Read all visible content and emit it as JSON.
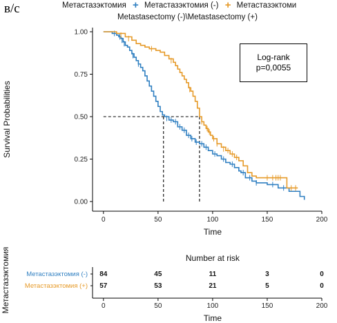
{
  "panel_label": "в/с",
  "legend": {
    "title": "Метастазэктомия",
    "items": [
      {
        "label": "Метастазэктомия (-)",
        "color": "#2f7fc1"
      },
      {
        "label": "Метастазэктоми",
        "color": "#e69a28"
      }
    ],
    "subtitle": "Metastasectomy (-)\\Metastasectomy (+)"
  },
  "annotation": {
    "line1": "Log-rank",
    "line2": "p=0,0055"
  },
  "chart_data": {
    "type": "line",
    "title": "",
    "xlabel": "Time",
    "ylabel": "Survival Probabilities",
    "xlim": [
      -10,
      200
    ],
    "ylim": [
      0,
      1
    ],
    "x_ticks": [
      0,
      50,
      100,
      150,
      200
    ],
    "y_ticks": [
      "0.00",
      "0.25",
      "0.50",
      "0.75",
      "1.00"
    ],
    "y_tick_values": [
      0,
      0.25,
      0.5,
      0.75,
      1.0
    ],
    "grid": false,
    "legend_position": "top",
    "median_lines": [
      {
        "series": "Метастазэктомия (-)",
        "x": 55,
        "y": 0.5
      },
      {
        "series": "Метастазэктомия (+)",
        "x": 88,
        "y": 0.5
      }
    ],
    "series": [
      {
        "name": "Метастазэктомия (-)",
        "color": "#2f7fc1",
        "steps": [
          [
            0,
            1.0
          ],
          [
            8,
            0.99
          ],
          [
            12,
            0.98
          ],
          [
            14,
            0.97
          ],
          [
            16,
            0.96
          ],
          [
            18,
            0.94
          ],
          [
            20,
            0.92
          ],
          [
            22,
            0.91
          ],
          [
            24,
            0.89
          ],
          [
            26,
            0.87
          ],
          [
            28,
            0.85
          ],
          [
            30,
            0.83
          ],
          [
            32,
            0.81
          ],
          [
            34,
            0.79
          ],
          [
            36,
            0.77
          ],
          [
            38,
            0.74
          ],
          [
            40,
            0.71
          ],
          [
            42,
            0.68
          ],
          [
            44,
            0.65
          ],
          [
            46,
            0.62
          ],
          [
            48,
            0.59
          ],
          [
            50,
            0.56
          ],
          [
            52,
            0.53
          ],
          [
            54,
            0.51
          ],
          [
            56,
            0.5
          ],
          [
            60,
            0.48
          ],
          [
            64,
            0.47
          ],
          [
            68,
            0.44
          ],
          [
            72,
            0.42
          ],
          [
            76,
            0.39
          ],
          [
            80,
            0.37
          ],
          [
            84,
            0.35
          ],
          [
            88,
            0.34
          ],
          [
            92,
            0.32
          ],
          [
            96,
            0.3
          ],
          [
            100,
            0.28
          ],
          [
            104,
            0.27
          ],
          [
            108,
            0.25
          ],
          [
            112,
            0.23
          ],
          [
            116,
            0.22
          ],
          [
            120,
            0.2
          ],
          [
            124,
            0.18
          ],
          [
            126,
            0.17
          ],
          [
            130,
            0.14
          ],
          [
            136,
            0.12
          ],
          [
            140,
            0.11
          ],
          [
            150,
            0.1
          ],
          [
            160,
            0.08
          ],
          [
            170,
            0.06
          ],
          [
            180,
            0.03
          ],
          [
            184,
            0.01
          ]
        ],
        "censors": [
          [
            10,
            0.99
          ],
          [
            15,
            0.97
          ],
          [
            17,
            0.95
          ],
          [
            19,
            0.93
          ],
          [
            27,
            0.86
          ],
          [
            32,
            0.81
          ],
          [
            58,
            0.49
          ],
          [
            62,
            0.48
          ],
          [
            66,
            0.47
          ],
          [
            70,
            0.44
          ],
          [
            74,
            0.42
          ],
          [
            78,
            0.39
          ],
          [
            81,
            0.37
          ],
          [
            85,
            0.35
          ],
          [
            90,
            0.34
          ],
          [
            94,
            0.32
          ],
          [
            102,
            0.28
          ],
          [
            110,
            0.25
          ],
          [
            118,
            0.22
          ],
          [
            128,
            0.17
          ],
          [
            134,
            0.14
          ],
          [
            140,
            0.11
          ],
          [
            155,
            0.1
          ],
          [
            165,
            0.08
          ]
        ]
      },
      {
        "name": "Метастазэктомия (+)",
        "color": "#e69a28",
        "steps": [
          [
            0,
            1.0
          ],
          [
            12,
            0.99
          ],
          [
            20,
            0.97
          ],
          [
            26,
            0.95
          ],
          [
            30,
            0.93
          ],
          [
            34,
            0.92
          ],
          [
            38,
            0.91
          ],
          [
            42,
            0.9
          ],
          [
            46,
            0.9
          ],
          [
            48,
            0.89
          ],
          [
            52,
            0.88
          ],
          [
            56,
            0.86
          ],
          [
            60,
            0.84
          ],
          [
            64,
            0.82
          ],
          [
            66,
            0.8
          ],
          [
            68,
            0.78
          ],
          [
            70,
            0.76
          ],
          [
            72,
            0.74
          ],
          [
            74,
            0.72
          ],
          [
            76,
            0.7
          ],
          [
            78,
            0.67
          ],
          [
            80,
            0.65
          ],
          [
            82,
            0.62
          ],
          [
            84,
            0.59
          ],
          [
            86,
            0.55
          ],
          [
            88,
            0.5
          ],
          [
            90,
            0.47
          ],
          [
            92,
            0.45
          ],
          [
            94,
            0.43
          ],
          [
            96,
            0.41
          ],
          [
            98,
            0.39
          ],
          [
            100,
            0.37
          ],
          [
            104,
            0.34
          ],
          [
            108,
            0.32
          ],
          [
            112,
            0.3
          ],
          [
            116,
            0.28
          ],
          [
            120,
            0.26
          ],
          [
            124,
            0.24
          ],
          [
            128,
            0.21
          ],
          [
            132,
            0.17
          ],
          [
            136,
            0.15
          ],
          [
            140,
            0.14
          ],
          [
            150,
            0.14
          ],
          [
            166,
            0.14
          ],
          [
            168,
            0.08
          ],
          [
            178,
            0.08
          ]
        ],
        "censors": [
          [
            16,
            0.98
          ],
          [
            23,
            0.96
          ],
          [
            44,
            0.9
          ],
          [
            62,
            0.83
          ],
          [
            79,
            0.66
          ],
          [
            90,
            0.47
          ],
          [
            95,
            0.43
          ],
          [
            97,
            0.41
          ],
          [
            101,
            0.37
          ],
          [
            104,
            0.34
          ],
          [
            110,
            0.31
          ],
          [
            114,
            0.3
          ],
          [
            118,
            0.28
          ],
          [
            122,
            0.26
          ],
          [
            150,
            0.14
          ],
          [
            155,
            0.14
          ],
          [
            158,
            0.14
          ],
          [
            160,
            0.14
          ],
          [
            162,
            0.14
          ],
          [
            172,
            0.08
          ],
          [
            176,
            0.08
          ]
        ]
      }
    ]
  },
  "risk_table": {
    "title": "Number at risk",
    "strata_label": "Метастазэктомия",
    "xlabel": "Time",
    "x_ticks": [
      0,
      50,
      100,
      150,
      200
    ],
    "rows": [
      {
        "label": "Метастазэктомия (-)",
        "color": "#2f7fc1",
        "values": [
          84,
          45,
          11,
          3,
          0
        ]
      },
      {
        "label": "Метастазэктомия (+)",
        "color": "#e69a28",
        "values": [
          57,
          53,
          21,
          5,
          0
        ]
      }
    ]
  }
}
